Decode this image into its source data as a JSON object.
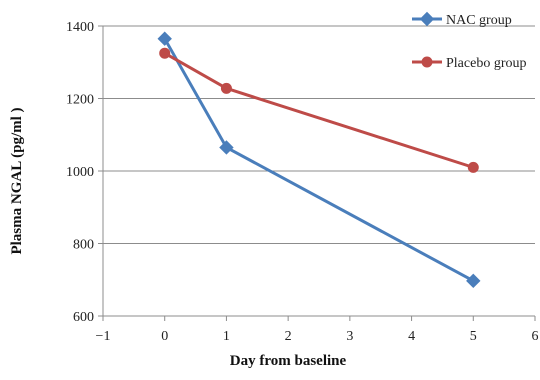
{
  "chart_data": {
    "type": "line",
    "title": "",
    "xlabel": "Day from baseline",
    "ylabel": "Plasma NGAL (pg/ml )",
    "xlim": [
      -1,
      6
    ],
    "ylim": [
      600,
      1400
    ],
    "xticks": [
      -1,
      0,
      1,
      2,
      3,
      4,
      5,
      6
    ],
    "yticks": [
      600,
      800,
      1000,
      1200,
      1400
    ],
    "grid": "horizontal",
    "legend_position": "top-right",
    "series": [
      {
        "name": "NAC group",
        "color": "#4a7ebb",
        "marker": "diamond",
        "x": [
          0,
          1,
          5
        ],
        "y": [
          1365,
          1065,
          697
        ]
      },
      {
        "name": "Placebo group",
        "color": "#be4b48",
        "marker": "circle",
        "x": [
          0,
          1,
          5
        ],
        "y": [
          1325,
          1228,
          1010
        ]
      }
    ]
  }
}
